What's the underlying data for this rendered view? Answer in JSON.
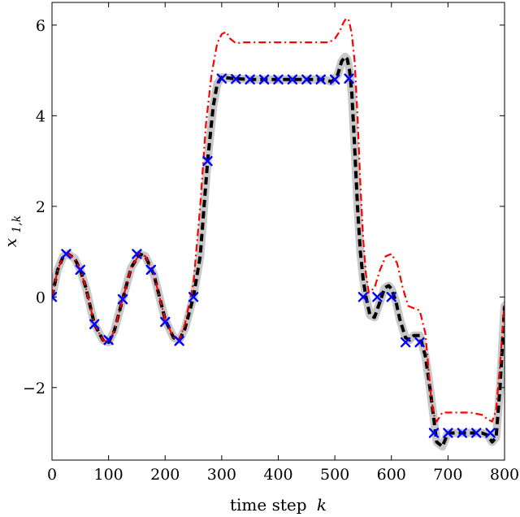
{
  "chart_data": {
    "type": "line",
    "title": "",
    "xlabel": "time step",
    "xlabel_var": "k",
    "ylabel": "x",
    "ylabel_sub": "1,k",
    "xlim": [
      0,
      800
    ],
    "ylim": [
      -3.6,
      6.5
    ],
    "xticks": [
      0,
      100,
      200,
      300,
      400,
      500,
      600,
      700,
      800
    ],
    "yticks": [
      -2,
      0,
      2,
      4,
      6
    ],
    "ytick_labels": [
      "−2",
      "0",
      "2",
      "4",
      "6"
    ],
    "grid": false,
    "colors": {
      "band": "#c8c8c8",
      "dashed": "#000000",
      "dashdot": "#ff0000",
      "markers": "#0000ff"
    },
    "series": [
      {
        "style": "gray-band",
        "x": [
          0,
          10,
          20,
          28,
          40,
          50,
          60,
          75,
          90,
          100,
          110,
          125,
          140,
          155,
          165,
          180,
          200,
          215,
          225,
          235,
          250,
          262,
          275,
          285,
          292,
          300,
          320,
          350,
          400,
          450,
          480,
          495,
          505,
          512,
          518,
          522,
          526,
          530,
          535,
          540,
          545,
          550,
          555,
          562,
          570,
          580,
          588,
          595,
          600,
          608,
          615,
          625,
          632,
          640,
          650,
          660,
          668,
          675,
          680,
          690,
          700,
          720,
          740,
          760,
          770,
          778,
          785,
          792,
          800
        ],
        "y": [
          0,
          0.6,
          0.9,
          0.95,
          0.85,
          0.6,
          0.2,
          -0.6,
          -0.95,
          -1.0,
          -0.75,
          -0.05,
          0.65,
          0.95,
          0.9,
          0.5,
          -0.5,
          -0.9,
          -0.95,
          -0.7,
          0.0,
          0.9,
          3.0,
          4.2,
          4.7,
          4.85,
          4.82,
          4.8,
          4.8,
          4.8,
          4.8,
          4.75,
          4.9,
          5.2,
          5.3,
          5.25,
          5.0,
          4.5,
          3.3,
          2.0,
          1.0,
          0.4,
          0.0,
          -0.4,
          -0.45,
          -0.1,
          0.2,
          0.25,
          0.18,
          -0.1,
          -0.5,
          -0.9,
          -0.95,
          -0.85,
          -0.85,
          -1.3,
          -2.0,
          -2.7,
          -3.2,
          -3.3,
          -3.0,
          -3.0,
          -3.0,
          -3.0,
          -3.05,
          -3.2,
          -3.1,
          -2.0,
          -0.2
        ]
      },
      {
        "style": "black-dashed",
        "x": [
          0,
          10,
          20,
          28,
          40,
          50,
          60,
          75,
          90,
          100,
          110,
          125,
          140,
          155,
          165,
          180,
          200,
          215,
          225,
          235,
          250,
          262,
          275,
          285,
          292,
          300,
          320,
          350,
          400,
          450,
          480,
          495,
          505,
          512,
          518,
          522,
          526,
          530,
          535,
          540,
          545,
          550,
          555,
          562,
          570,
          580,
          588,
          595,
          600,
          608,
          615,
          625,
          632,
          640,
          650,
          660,
          668,
          675,
          680,
          690,
          700,
          720,
          740,
          760,
          770,
          778,
          785,
          792,
          800
        ],
        "y": [
          0,
          0.6,
          0.9,
          0.95,
          0.85,
          0.6,
          0.2,
          -0.6,
          -0.95,
          -1.0,
          -0.75,
          -0.05,
          0.65,
          0.95,
          0.9,
          0.5,
          -0.5,
          -0.9,
          -0.95,
          -0.7,
          0.0,
          0.9,
          3.0,
          4.2,
          4.7,
          4.85,
          4.82,
          4.8,
          4.8,
          4.8,
          4.8,
          4.75,
          4.9,
          5.2,
          5.3,
          5.25,
          5.0,
          4.5,
          3.3,
          2.0,
          1.0,
          0.4,
          0.0,
          -0.4,
          -0.45,
          -0.1,
          0.2,
          0.25,
          0.18,
          -0.1,
          -0.5,
          -0.9,
          -0.95,
          -0.85,
          -0.85,
          -1.3,
          -2.0,
          -2.7,
          -3.2,
          -3.3,
          -3.0,
          -3.0,
          -3.0,
          -3.0,
          -3.05,
          -3.2,
          -3.1,
          -2.0,
          -0.2
        ]
      },
      {
        "style": "red-dashdot",
        "x": [
          0,
          10,
          20,
          28,
          40,
          50,
          60,
          75,
          90,
          100,
          110,
          125,
          140,
          155,
          165,
          180,
          200,
          215,
          225,
          235,
          250,
          262,
          272,
          282,
          292,
          300,
          308,
          315,
          325,
          340,
          380,
          420,
          460,
          490,
          500,
          508,
          515,
          520,
          525,
          530,
          535,
          540,
          545,
          550,
          555,
          560,
          570,
          580,
          590,
          600,
          610,
          620,
          630,
          640,
          650,
          660,
          665,
          670,
          675,
          680,
          690,
          700,
          720,
          740,
          760,
          770,
          778,
          785,
          792,
          800
        ],
        "y": [
          0,
          0.6,
          0.9,
          0.95,
          0.85,
          0.6,
          0.2,
          -0.6,
          -0.95,
          -1.0,
          -0.75,
          -0.05,
          0.65,
          0.95,
          0.9,
          0.5,
          -0.5,
          -0.9,
          -0.95,
          -0.6,
          0.3,
          2.0,
          3.8,
          4.9,
          5.6,
          5.8,
          5.85,
          5.7,
          5.6,
          5.62,
          5.62,
          5.62,
          5.62,
          5.62,
          5.7,
          5.85,
          6.05,
          6.15,
          6.1,
          5.8,
          5.2,
          4.0,
          2.5,
          1.3,
          0.5,
          0.1,
          0.2,
          0.6,
          0.9,
          0.95,
          0.75,
          0.2,
          -0.2,
          -0.25,
          -0.3,
          -0.8,
          -1.5,
          -2.2,
          -2.6,
          -2.75,
          -2.55,
          -2.55,
          -2.55,
          -2.55,
          -2.6,
          -2.7,
          -2.75,
          -2.5,
          -1.5,
          -0.1
        ]
      },
      {
        "style": "blue-x",
        "x": [
          0,
          25,
          50,
          75,
          100,
          125,
          150,
          175,
          200,
          225,
          250,
          275,
          300,
          325,
          350,
          375,
          400,
          425,
          450,
          475,
          500,
          525,
          550,
          575,
          600,
          625,
          650,
          675,
          700,
          725,
          750,
          775
        ],
        "y": [
          0,
          0.95,
          0.6,
          -0.6,
          -0.95,
          -0.05,
          0.95,
          0.6,
          -0.55,
          -0.97,
          0.0,
          3.0,
          4.82,
          4.81,
          4.8,
          4.8,
          4.8,
          4.8,
          4.8,
          4.8,
          4.8,
          4.82,
          0.0,
          0.0,
          0.0,
          -1.0,
          -1.0,
          -3.0,
          -3.0,
          -3.0,
          -3.0,
          -3.0
        ]
      }
    ]
  }
}
